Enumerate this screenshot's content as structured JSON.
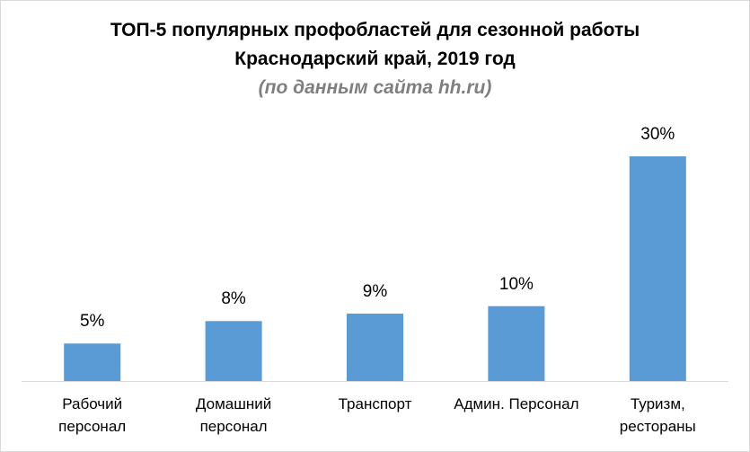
{
  "chart_data": {
    "type": "bar",
    "title_line1": "ТОП-5 популярных профобластей для сезонной работы",
    "title_line2": "Краснодарский край, 2019 год",
    "subtitle": "(по данным сайта hh.ru)",
    "categories": [
      [
        "Рабочий",
        "персонал"
      ],
      [
        "Домашний",
        "персонал"
      ],
      [
        "Транспорт"
      ],
      [
        "Админ. Персонал"
      ],
      [
        "Туризм,",
        "рестораны"
      ]
    ],
    "values": [
      5,
      8,
      9,
      10,
      30
    ],
    "value_labels": [
      "5%",
      "8%",
      "9%",
      "10%",
      "30%"
    ],
    "ylim": [
      0,
      30
    ],
    "grid": false,
    "bar_color": "#5b9bd5",
    "subtitle_color": "#7f7f7f",
    "axis_color": "#d9d9d9"
  }
}
